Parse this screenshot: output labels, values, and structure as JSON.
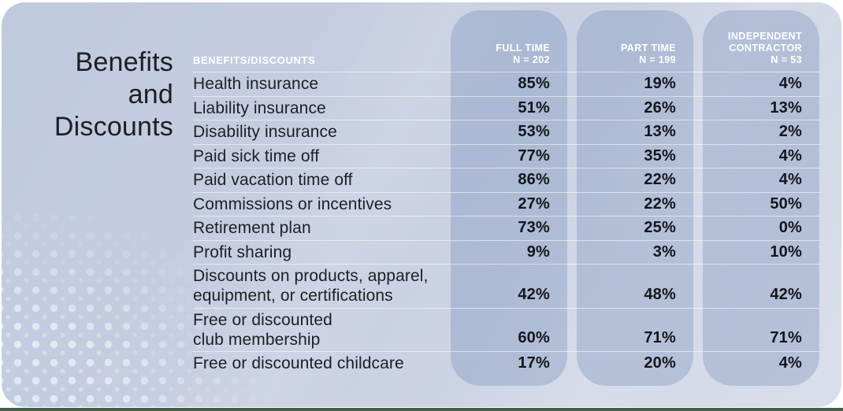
{
  "title": {
    "lines": [
      "Benefits",
      "and",
      "Discounts"
    ]
  },
  "table": {
    "row_header": "BENEFITS/DISCOUNTS",
    "columns": [
      {
        "label": "FULL TIME",
        "n": "N = 202"
      },
      {
        "label": "PART TIME",
        "n": "N = 199"
      },
      {
        "label": "INDEPENDENT CONTRACTOR",
        "n": "N = 53"
      }
    ],
    "rows": [
      {
        "lines": [
          "Health insurance"
        ],
        "values": [
          "85%",
          "19%",
          "4%"
        ]
      },
      {
        "lines": [
          "Liability insurance"
        ],
        "values": [
          "51%",
          "26%",
          "13%"
        ]
      },
      {
        "lines": [
          "Disability insurance"
        ],
        "values": [
          "53%",
          "13%",
          "2%"
        ]
      },
      {
        "lines": [
          "Paid sick time off"
        ],
        "values": [
          "77%",
          "35%",
          "4%"
        ]
      },
      {
        "lines": [
          "Paid vacation time off"
        ],
        "values": [
          "86%",
          "22%",
          "4%"
        ]
      },
      {
        "lines": [
          "Commissions or incentives"
        ],
        "values": [
          "27%",
          "22%",
          "50%"
        ]
      },
      {
        "lines": [
          "Retirement plan"
        ],
        "values": [
          "73%",
          "25%",
          "0%"
        ]
      },
      {
        "lines": [
          "Profit sharing"
        ],
        "values": [
          "9%",
          "3%",
          "10%"
        ]
      },
      {
        "lines": [
          "Discounts on products, apparel,",
          "equipment, or certifications"
        ],
        "values": [
          "42%",
          "48%",
          "42%"
        ]
      },
      {
        "lines": [
          "Free or discounted",
          "club membership"
        ],
        "values": [
          "60%",
          "71%",
          "71%"
        ]
      },
      {
        "lines": [
          "Free or discounted childcare"
        ],
        "values": [
          "17%",
          "20%",
          "4%"
        ]
      }
    ]
  },
  "colors": {
    "card_background_top": "#c2cbdf",
    "card_background_bottom": "#dbdfec",
    "column_pill": "#b0bed6",
    "header_text": "#ffffff",
    "body_text": "#1d1f24",
    "accent_strip": "#46604a"
  },
  "chart_data": {
    "type": "table",
    "title": "Benefits and Discounts",
    "categories": [
      "Health insurance",
      "Liability insurance",
      "Disability insurance",
      "Paid sick time off",
      "Paid vacation time off",
      "Commissions or incentives",
      "Retirement plan",
      "Profit sharing",
      "Discounts on products, apparel, equipment, or certifications",
      "Free or discounted club membership",
      "Free or discounted childcare"
    ],
    "series": [
      {
        "name": "Full time (N = 202)",
        "values": [
          85,
          51,
          53,
          77,
          86,
          27,
          73,
          9,
          42,
          60,
          17
        ]
      },
      {
        "name": "Part time (N = 199)",
        "values": [
          19,
          26,
          13,
          35,
          22,
          22,
          25,
          3,
          48,
          71,
          20
        ]
      },
      {
        "name": "Independent contractor (N = 53)",
        "values": [
          4,
          13,
          2,
          4,
          4,
          50,
          0,
          10,
          42,
          71,
          4
        ]
      }
    ],
    "unit": "%"
  }
}
